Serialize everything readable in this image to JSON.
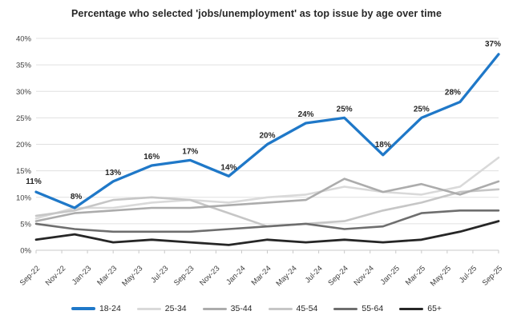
{
  "title": "Percentage who selected 'jobs/unemployment' as top issue by age over time",
  "chart_data": {
    "type": "line",
    "x_axis_tick_labels": [
      "Sep-22",
      "Nov-22",
      "Jan-23",
      "Mar-23",
      "May-23",
      "Jul-23",
      "Sep-23",
      "Nov-23",
      "Jan-24",
      "Mar-24",
      "May-24",
      "Jul-24",
      "Sep-24",
      "Nov-24",
      "Jan-25",
      "Mar-25",
      "May-25",
      "Jul-25",
      "Sep-25"
    ],
    "x_data_points": [
      "Sep-22",
      "Dec-22",
      "Mar-23",
      "Jun-23",
      "Sep-23",
      "Dec-23",
      "Mar-24",
      "Jun-24",
      "Sep-24",
      "Dec-24",
      "Mar-25",
      "Jun-25",
      "Sep-25"
    ],
    "ylim": [
      0,
      40
    ],
    "y_tick_step": 5,
    "y_tick_suffix": "%",
    "grid": true,
    "legend_position": "bottom",
    "series": [
      {
        "name": "25-34",
        "color": "#D9D9D9",
        "width": 2.6,
        "values": [
          6,
          8,
          8,
          9,
          9.5,
          9,
          10,
          10.5,
          12,
          11,
          10.5,
          12,
          17.5
        ]
      },
      {
        "name": "45-54",
        "color": "#C6C6C6",
        "width": 2.6,
        "values": [
          6.5,
          7.5,
          9.5,
          10,
          9.5,
          7,
          4.5,
          5,
          5.5,
          7.5,
          9,
          11,
          11.5
        ]
      },
      {
        "name": "35-44",
        "color": "#ACACAC",
        "width": 2.6,
        "values": [
          5.5,
          7,
          7.5,
          8,
          8,
          8.5,
          9,
          9.5,
          13.5,
          11,
          12.5,
          10.5,
          13
        ]
      },
      {
        "name": "55-64",
        "color": "#6E6E6E",
        "width": 2.6,
        "values": [
          5,
          4,
          3.5,
          3.5,
          3.5,
          4,
          4.5,
          5,
          4,
          4.5,
          7,
          7.5,
          7.5
        ]
      },
      {
        "name": "65+",
        "color": "#262626",
        "width": 2.8,
        "values": [
          2,
          3,
          1.5,
          2,
          1.5,
          1,
          2,
          1.5,
          2,
          1.5,
          2,
          3.5,
          5.5
        ]
      },
      {
        "name": "18-24",
        "color": "#1F78C8",
        "width": 3.3,
        "values": [
          11,
          8,
          13,
          16,
          17,
          14,
          20,
          24,
          25,
          18,
          25,
          28,
          37
        ],
        "data_labels": [
          "11%",
          "8%",
          "13%",
          "16%",
          "17%",
          "14%",
          "20%",
          "24%",
          "25%",
          "18%",
          "25%",
          "28%",
          "37%"
        ]
      }
    ],
    "legend_order": [
      "18-24",
      "25-34",
      "35-44",
      "45-54",
      "55-64",
      "65+"
    ]
  }
}
